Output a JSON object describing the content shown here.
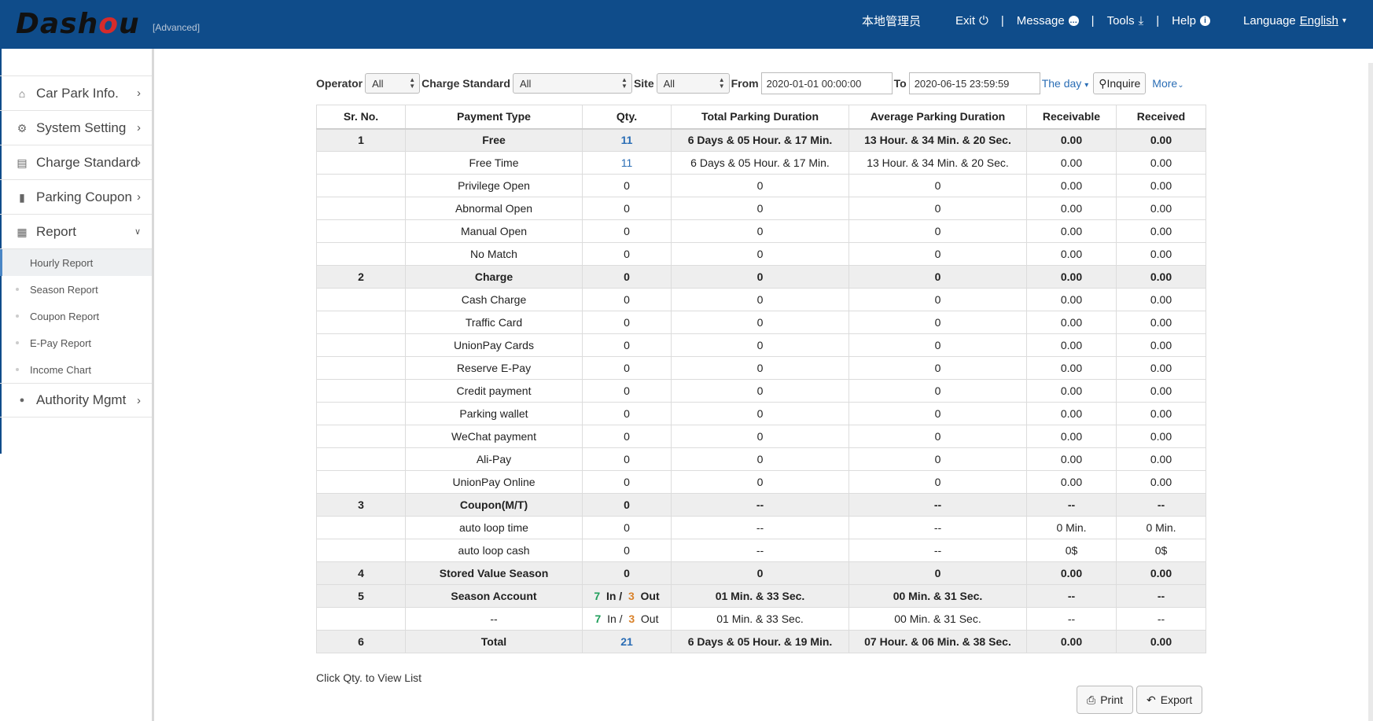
{
  "header": {
    "logo_prefix": "Dash",
    "logo_o": "o",
    "logo_suffix": "u",
    "logo_sub": "[Advanced]",
    "admin": "本地管理员",
    "exit": "Exit",
    "message": "Message",
    "tools": "Tools",
    "help": "Help",
    "language_label": "Language",
    "language_value": "English",
    "separator": "|"
  },
  "sidebar": {
    "items": [
      {
        "label": "Car Park Info.",
        "icon": "home-icon",
        "glyph": "⌂"
      },
      {
        "label": "System Setting",
        "icon": "gear-icon",
        "glyph": "⚙"
      },
      {
        "label": "Charge Standard",
        "icon": "book-icon",
        "glyph": "▤"
      },
      {
        "label": "Parking Coupon",
        "icon": "coupon-icon",
        "glyph": "▮"
      },
      {
        "label": "Report",
        "icon": "report-icon",
        "glyph": "▦"
      }
    ],
    "report_sub": [
      "Hourly Report",
      "Season Report",
      "Coupon Report",
      "E-Pay Report",
      "Income Chart"
    ],
    "authority": {
      "label": "Authority Mgmt",
      "icon": "lock-icon",
      "glyph": "🔒"
    }
  },
  "filters": {
    "operator_label": "Operator",
    "operator_value": "All",
    "charge_label": "Charge Standard",
    "charge_value": "All",
    "site_label": "Site",
    "site_value": "All",
    "from_label": "From",
    "from_value": "2020-01-01 00:00:00",
    "to_label": "To",
    "to_value": "2020-06-15 23:59:59",
    "the_day": "The day",
    "inquire": "Inquire",
    "more": "More"
  },
  "table": {
    "headers": [
      "Sr. No.",
      "Payment Type",
      "Qty.",
      "Total Parking Duration",
      "Average Parking Duration",
      "Receivable",
      "Received"
    ],
    "rows": [
      {
        "group": true,
        "no": "1",
        "type": "Free",
        "qty": "11",
        "qty_link": true,
        "total": "6 Days & 05 Hour. & 17 Min.",
        "avg": "13 Hour. & 34 Min. & 20 Sec.",
        "recv": "0.00",
        "recd": "0.00"
      },
      {
        "group": false,
        "no": "",
        "type": "Free Time",
        "qty": "11",
        "qty_link": true,
        "total": "6 Days & 05 Hour. & 17 Min.",
        "avg": "13 Hour. & 34 Min. & 20 Sec.",
        "recv": "0.00",
        "recd": "0.00"
      },
      {
        "group": false,
        "no": "",
        "type": "Privilege Open",
        "qty": "0",
        "total": "0",
        "avg": "0",
        "recv": "0.00",
        "recd": "0.00"
      },
      {
        "group": false,
        "no": "",
        "type": "Abnormal Open",
        "qty": "0",
        "total": "0",
        "avg": "0",
        "recv": "0.00",
        "recd": "0.00"
      },
      {
        "group": false,
        "no": "",
        "type": "Manual Open",
        "qty": "0",
        "total": "0",
        "avg": "0",
        "recv": "0.00",
        "recd": "0.00"
      },
      {
        "group": false,
        "no": "",
        "type": "No Match",
        "qty": "0",
        "total": "0",
        "avg": "0",
        "recv": "0.00",
        "recd": "0.00"
      },
      {
        "group": true,
        "no": "2",
        "type": "Charge",
        "qty": "0",
        "total": "0",
        "avg": "0",
        "recv": "0.00",
        "recd": "0.00"
      },
      {
        "group": false,
        "no": "",
        "type": "Cash Charge",
        "qty": "0",
        "total": "0",
        "avg": "0",
        "recv": "0.00",
        "recd": "0.00"
      },
      {
        "group": false,
        "no": "",
        "type": "Traffic Card",
        "qty": "0",
        "total": "0",
        "avg": "0",
        "recv": "0.00",
        "recd": "0.00"
      },
      {
        "group": false,
        "no": "",
        "type": "UnionPay Cards",
        "qty": "0",
        "total": "0",
        "avg": "0",
        "recv": "0.00",
        "recd": "0.00"
      },
      {
        "group": false,
        "no": "",
        "type": "Reserve E-Pay",
        "qty": "0",
        "total": "0",
        "avg": "0",
        "recv": "0.00",
        "recd": "0.00"
      },
      {
        "group": false,
        "no": "",
        "type": "Credit payment",
        "qty": "0",
        "total": "0",
        "avg": "0",
        "recv": "0.00",
        "recd": "0.00"
      },
      {
        "group": false,
        "no": "",
        "type": "Parking wallet",
        "qty": "0",
        "total": "0",
        "avg": "0",
        "recv": "0.00",
        "recd": "0.00"
      },
      {
        "group": false,
        "no": "",
        "type": "WeChat payment",
        "qty": "0",
        "total": "0",
        "avg": "0",
        "recv": "0.00",
        "recd": "0.00"
      },
      {
        "group": false,
        "no": "",
        "type": "Ali-Pay",
        "qty": "0",
        "total": "0",
        "avg": "0",
        "recv": "0.00",
        "recd": "0.00"
      },
      {
        "group": false,
        "no": "",
        "type": "UnionPay Online",
        "qty": "0",
        "total": "0",
        "avg": "0",
        "recv": "0.00",
        "recd": "0.00"
      },
      {
        "group": true,
        "no": "3",
        "type": "Coupon(M/T)",
        "qty": "0",
        "total": "--",
        "avg": "--",
        "recv": "--",
        "recd": "--"
      },
      {
        "group": false,
        "no": "",
        "type": "auto loop time",
        "qty": "0",
        "total": "--",
        "avg": "--",
        "recv": "0 Min.",
        "recd": "0 Min."
      },
      {
        "group": false,
        "no": "",
        "type": "auto loop cash",
        "qty": "0",
        "total": "--",
        "avg": "--",
        "recv": "0$",
        "recd": "0$"
      },
      {
        "group": true,
        "no": "4",
        "type": "Stored Value Season",
        "qty": "0",
        "total": "0",
        "avg": "0",
        "recv": "0.00",
        "recd": "0.00"
      },
      {
        "group": true,
        "no": "5",
        "type": "Season Account",
        "inout": {
          "in": "7",
          "in_label": "In /",
          "out": "3",
          "out_label": "Out"
        },
        "total": "01 Min. & 33 Sec.",
        "avg": "00 Min. & 31 Sec.",
        "recv": "--",
        "recd": "--"
      },
      {
        "group": false,
        "no": "",
        "type": "--",
        "inout": {
          "in": "7",
          "in_label": "In /",
          "out": "3",
          "out_label": "Out"
        },
        "total": "01 Min. & 33 Sec.",
        "avg": "00 Min. & 31 Sec.",
        "recv": "--",
        "recd": "--"
      },
      {
        "group": true,
        "no": "6",
        "type": "Total",
        "qty": "21",
        "qty_link": true,
        "total": "6 Days & 05 Hour. & 19 Min.",
        "avg": "07 Hour. & 06 Min. & 38 Sec.",
        "recv": "0.00",
        "recd": "0.00"
      }
    ]
  },
  "footer": {
    "hint": "Click Qty. to View List",
    "print": "Print",
    "export": "Export"
  }
}
